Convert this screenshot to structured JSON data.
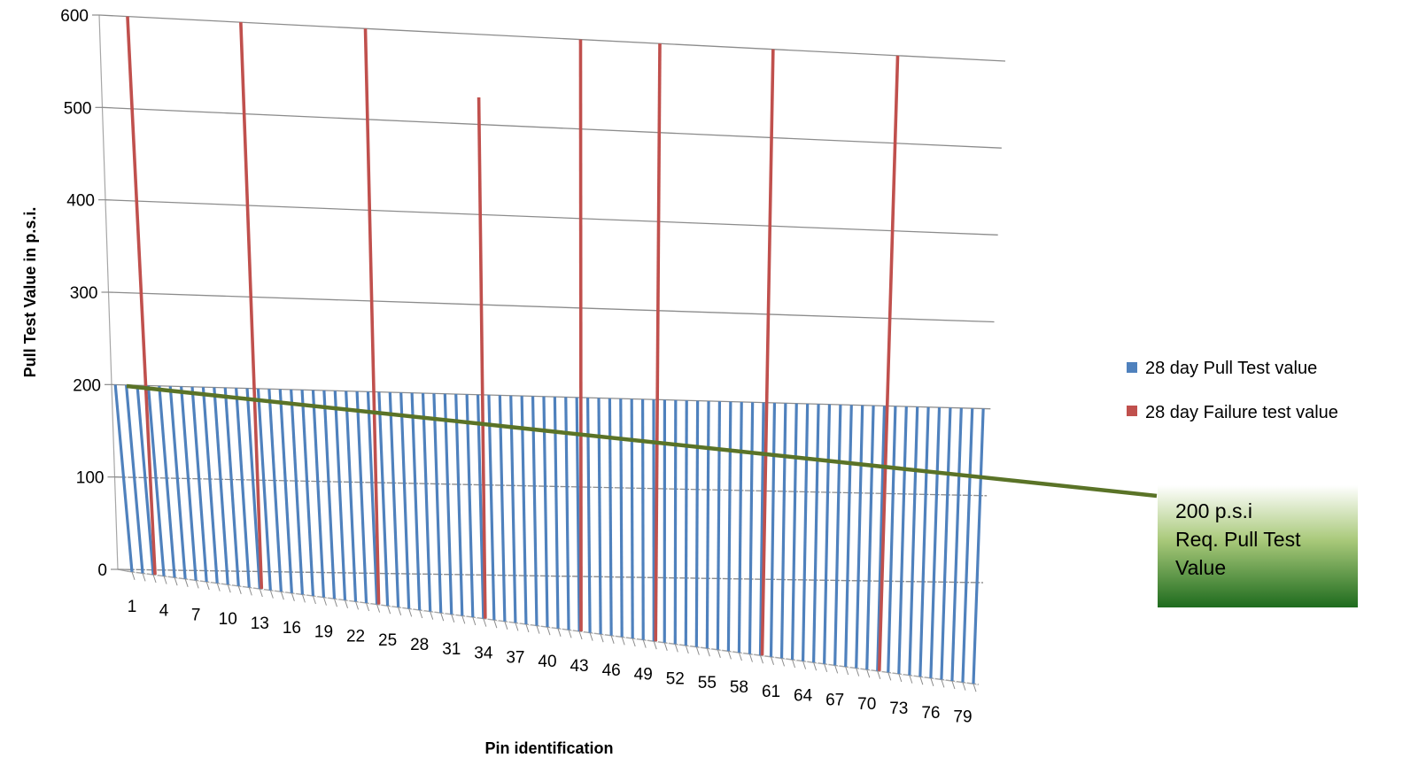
{
  "chart_data": {
    "type": "bar",
    "projection": "3d-perspective",
    "xlabel": "Pin identification",
    "ylabel": "Pull Test Value in p.s.i.",
    "ylim": [
      0,
      600
    ],
    "yticks": [
      0,
      100,
      200,
      300,
      400,
      500,
      600
    ],
    "x": [
      1,
      2,
      3,
      4,
      5,
      6,
      7,
      8,
      9,
      10,
      11,
      12,
      13,
      14,
      15,
      16,
      17,
      18,
      19,
      20,
      21,
      22,
      23,
      24,
      25,
      26,
      27,
      28,
      29,
      30,
      31,
      32,
      33,
      34,
      35,
      36,
      37,
      38,
      39,
      40,
      41,
      42,
      43,
      44,
      45,
      46,
      47,
      48,
      49,
      50,
      51,
      52,
      53,
      54,
      55,
      56,
      57,
      58,
      59,
      60,
      61,
      62,
      63,
      64,
      65,
      66,
      67,
      68,
      69,
      70,
      71,
      72,
      73,
      74,
      75,
      76,
      77,
      78,
      79,
      80
    ],
    "x_tick_labels": [
      "1",
      "4",
      "7",
      "10",
      "13",
      "16",
      "19",
      "22",
      "25",
      "28",
      "31",
      "34",
      "37",
      "40",
      "43",
      "46",
      "49",
      "52",
      "55",
      "58",
      "61",
      "64",
      "67",
      "70",
      "73",
      "76",
      "79"
    ],
    "grid": true,
    "legend_position": "right",
    "series": [
      {
        "name": "28 day Pull Test value",
        "color": "#4f81bd",
        "values": [
          200,
          200,
          200,
          200,
          200,
          200,
          200,
          200,
          200,
          200,
          200,
          200,
          200,
          200,
          200,
          200,
          200,
          200,
          200,
          200,
          200,
          200,
          200,
          200,
          200,
          200,
          200,
          200,
          200,
          200,
          200,
          200,
          200,
          200,
          200,
          200,
          200,
          200,
          200,
          200,
          200,
          200,
          200,
          200,
          200,
          200,
          200,
          200,
          200,
          200,
          200,
          200,
          200,
          200,
          200,
          200,
          200,
          200,
          200,
          200,
          200,
          200,
          200,
          200,
          200,
          200,
          200,
          200,
          200,
          200,
          200,
          200,
          200,
          200,
          200,
          200,
          200,
          200,
          200,
          200
        ]
      },
      {
        "name": "28 day Failure test value",
        "color": "#c0504d",
        "points": [
          {
            "x": 3,
            "y": 600
          },
          {
            "x": 13,
            "y": 600
          },
          {
            "x": 24,
            "y": 600
          },
          {
            "x": 34,
            "y": 530
          },
          {
            "x": 43,
            "y": 600
          },
          {
            "x": 50,
            "y": 600
          },
          {
            "x": 60,
            "y": 600
          },
          {
            "x": 71,
            "y": 600
          }
        ]
      }
    ],
    "reference_line": {
      "value": 200,
      "color": "#5a7327",
      "label_lines": [
        "200 p.s.i",
        "Req. Pull Test",
        "Value"
      ]
    }
  }
}
